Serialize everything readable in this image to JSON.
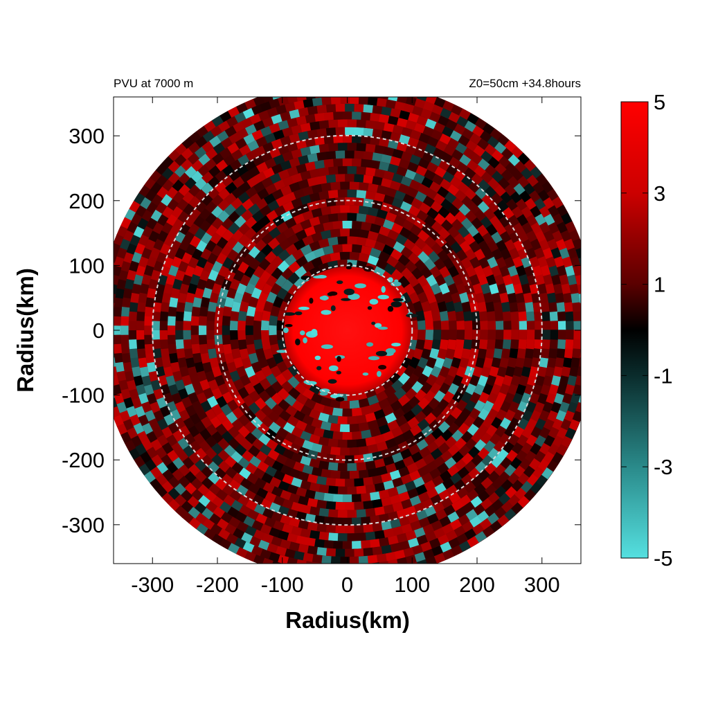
{
  "chart_data": {
    "type": "heatmap",
    "title_left": "PVU at  7000 m",
    "title_right": "Z0=50cm  +34.8hours",
    "xlabel": "Radius(km)",
    "ylabel": "Radius(km)",
    "xlim": [
      -360,
      360
    ],
    "ylim": [
      -360,
      360
    ],
    "x_ticks": [
      -300,
      -200,
      -100,
      0,
      100,
      200,
      300
    ],
    "y_ticks": [
      300,
      200,
      100,
      0,
      -100,
      -200,
      -300
    ],
    "x_tick_labels": [
      "-300",
      "-200",
      "-100",
      "0",
      "100",
      "200",
      "300"
    ],
    "y_tick_labels": [
      "300",
      "200",
      "100",
      "0",
      "-100",
      "-200",
      "-300"
    ],
    "domain_radius_km": 385,
    "reference_circles_km": [
      100,
      200,
      300
    ],
    "colorbar": {
      "min": -5,
      "max": 5,
      "ticks": [
        5,
        3,
        1,
        -1,
        -3,
        -5
      ],
      "tick_labels": [
        "5",
        "3",
        "1",
        "-1",
        "-3",
        "-5"
      ],
      "colors": {
        "min": "#55e0e0",
        "mid": "#000000",
        "max": "#ff0000"
      }
    },
    "field_description": {
      "core_value": 5,
      "core_radius_km": 100,
      "background_value_range": [
        0.5,
        4
      ],
      "negative_patches_value_range": [
        -5,
        -1
      ]
    }
  }
}
